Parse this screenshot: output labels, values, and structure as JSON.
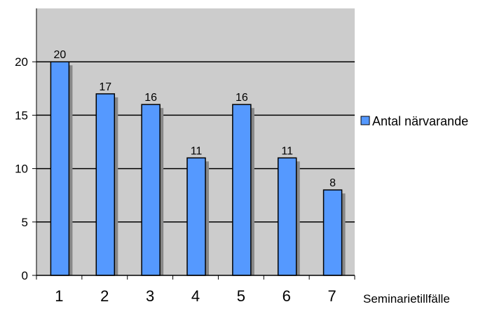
{
  "chart_data": {
    "type": "bar",
    "categories": [
      "1",
      "2",
      "3",
      "4",
      "5",
      "6",
      "7"
    ],
    "series": [
      {
        "name": "Antal närvarande",
        "values": [
          20,
          17,
          16,
          11,
          16,
          11,
          8
        ],
        "color": "#5599ff"
      }
    ],
    "xlabel": "Seminarietillfälle",
    "ylabel": "",
    "ylim": [
      0,
      25
    ],
    "yticks": [
      0,
      5,
      10,
      15,
      20
    ],
    "grid": true,
    "legend_position": "right",
    "plot_background": "#cccccc",
    "bar_shadow_color": "#888888"
  }
}
